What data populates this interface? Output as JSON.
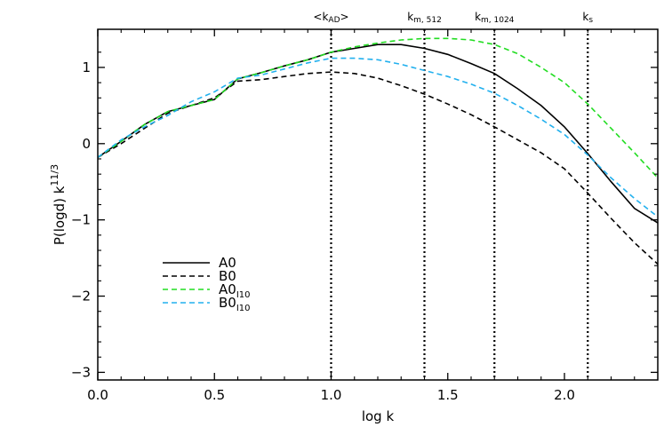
{
  "chart_data": {
    "type": "line",
    "title": "",
    "xlabel": "log k",
    "ylabel_main": "P(logd)  k",
    "ylabel_exp": "11/3",
    "xlim": [
      0.0,
      2.4
    ],
    "ylim": [
      -3.1,
      1.5
    ],
    "grid": false,
    "legend_position": "lower-left",
    "x_ticks": [
      {
        "value": 0.0,
        "label": "0.0"
      },
      {
        "value": 0.5,
        "label": "0.5"
      },
      {
        "value": 1.0,
        "label": "1.0"
      },
      {
        "value": 1.5,
        "label": "1.5"
      },
      {
        "value": 2.0,
        "label": "2.0"
      }
    ],
    "y_ticks": [
      {
        "value": 1,
        "label": "1"
      },
      {
        "value": 0,
        "label": "0"
      },
      {
        "value": -1,
        "label": "−1"
      },
      {
        "value": -2,
        "label": "−2"
      },
      {
        "value": -3,
        "label": "−3"
      }
    ],
    "vertical_markers": [
      {
        "x": 1.0,
        "label": "<k",
        "sub": "AD",
        "suffix": ">"
      },
      {
        "x": 1.4,
        "label": "k",
        "sub": "m, 512",
        "suffix": ""
      },
      {
        "x": 1.7,
        "label": "k",
        "sub": "m, 1024",
        "suffix": ""
      },
      {
        "x": 2.1,
        "label": "k",
        "sub": "s",
        "suffix": ""
      }
    ],
    "series": [
      {
        "name": "A0",
        "name_sub": "",
        "color": "#000000",
        "dash": "solid",
        "x": [
          0.0,
          0.1,
          0.2,
          0.3,
          0.4,
          0.5,
          0.6,
          0.7,
          0.8,
          0.9,
          1.0,
          1.1,
          1.2,
          1.3,
          1.4,
          1.5,
          1.6,
          1.7,
          1.8,
          1.9,
          2.0,
          2.1,
          2.2,
          2.3,
          2.4
        ],
        "y": [
          -0.18,
          0.03,
          0.25,
          0.42,
          0.5,
          0.58,
          0.85,
          0.93,
          1.02,
          1.1,
          1.2,
          1.25,
          1.3,
          1.3,
          1.25,
          1.17,
          1.05,
          0.92,
          0.72,
          0.5,
          0.22,
          -0.13,
          -0.5,
          -0.85,
          -1.04
        ]
      },
      {
        "name": "B0",
        "name_sub": "",
        "color": "#000000",
        "dash": "dashed",
        "x": [
          0.0,
          0.1,
          0.2,
          0.3,
          0.4,
          0.5,
          0.6,
          0.7,
          0.8,
          0.9,
          1.0,
          1.1,
          1.2,
          1.3,
          1.4,
          1.5,
          1.6,
          1.7,
          1.8,
          1.9,
          2.0,
          2.1,
          2.2,
          2.3,
          2.4
        ],
        "y": [
          -0.18,
          0.0,
          0.2,
          0.4,
          0.5,
          0.6,
          0.82,
          0.84,
          0.88,
          0.92,
          0.94,
          0.92,
          0.86,
          0.76,
          0.65,
          0.52,
          0.38,
          0.22,
          0.05,
          -0.12,
          -0.33,
          -0.65,
          -0.98,
          -1.3,
          -1.58
        ]
      },
      {
        "name": "A0",
        "name_sub": "I10",
        "color": "#22dd22",
        "dash": "dashed",
        "x": [
          0.0,
          0.1,
          0.2,
          0.3,
          0.4,
          0.5,
          0.6,
          0.7,
          0.8,
          0.9,
          1.0,
          1.1,
          1.2,
          1.3,
          1.4,
          1.5,
          1.6,
          1.7,
          1.8,
          1.9,
          2.0,
          2.1,
          2.2,
          2.3,
          2.4
        ],
        "y": [
          -0.18,
          0.03,
          0.25,
          0.42,
          0.5,
          0.58,
          0.85,
          0.93,
          1.02,
          1.1,
          1.2,
          1.27,
          1.32,
          1.36,
          1.38,
          1.38,
          1.36,
          1.3,
          1.18,
          1.0,
          0.8,
          0.52,
          0.2,
          -0.12,
          -0.45
        ]
      },
      {
        "name": "B0",
        "name_sub": "I10",
        "color": "#22b0ee",
        "dash": "dashed",
        "x": [
          0.0,
          0.1,
          0.2,
          0.3,
          0.4,
          0.5,
          0.6,
          0.7,
          0.8,
          0.9,
          1.0,
          1.1,
          1.2,
          1.3,
          1.4,
          1.5,
          1.6,
          1.7,
          1.8,
          1.9,
          2.0,
          2.1,
          2.2,
          2.3,
          2.4
        ],
        "y": [
          -0.18,
          0.05,
          0.22,
          0.37,
          0.55,
          0.68,
          0.86,
          0.9,
          0.98,
          1.06,
          1.12,
          1.12,
          1.1,
          1.04,
          0.96,
          0.88,
          0.78,
          0.66,
          0.5,
          0.32,
          0.12,
          -0.15,
          -0.45,
          -0.72,
          -0.96
        ]
      }
    ]
  }
}
